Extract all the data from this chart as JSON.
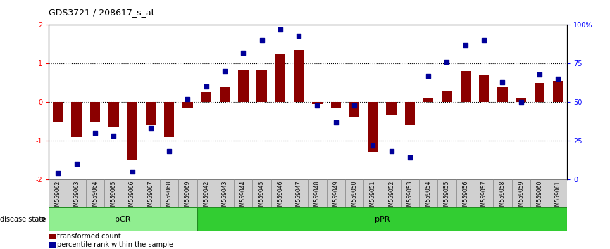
{
  "title": "GDS3721 / 208617_s_at",
  "samples": [
    "GSM559062",
    "GSM559063",
    "GSM559064",
    "GSM559065",
    "GSM559066",
    "GSM559067",
    "GSM559068",
    "GSM559069",
    "GSM559042",
    "GSM559043",
    "GSM559044",
    "GSM559045",
    "GSM559046",
    "GSM559047",
    "GSM559048",
    "GSM559049",
    "GSM559050",
    "GSM559051",
    "GSM559052",
    "GSM559053",
    "GSM559054",
    "GSM559055",
    "GSM559056",
    "GSM559057",
    "GSM559058",
    "GSM559059",
    "GSM559060",
    "GSM559061"
  ],
  "bar_values": [
    -0.5,
    -0.9,
    -0.5,
    -0.65,
    -1.5,
    -0.6,
    -0.9,
    -0.15,
    0.25,
    0.4,
    0.85,
    0.85,
    1.25,
    1.35,
    -0.05,
    -0.15,
    -0.4,
    -1.3,
    -0.35,
    -0.6,
    0.1,
    0.3,
    0.8,
    0.7,
    0.4,
    0.1,
    0.5,
    0.55
  ],
  "scatter_values": [
    4,
    10,
    30,
    28,
    5,
    33,
    18,
    52,
    60,
    70,
    82,
    90,
    97,
    93,
    48,
    37,
    48,
    22,
    18,
    14,
    67,
    76,
    87,
    90,
    63,
    50,
    68,
    65
  ],
  "pCR_count": 8,
  "pPR_count": 20,
  "bar_color": "#8B0000",
  "scatter_color": "#000099",
  "ylim": [
    -2,
    2
  ],
  "y2lim": [
    0,
    100
  ],
  "dotted_lines": [
    -1,
    0,
    1
  ],
  "pCR_color": "#90EE90",
  "pPR_color": "#32CD32",
  "pCR_label": "pCR",
  "pPR_label": "pPR",
  "disease_state_label": "disease state",
  "legend_bar": "transformed count",
  "legend_scatter": "percentile rank within the sample",
  "ytick_labels_left": [
    "-2",
    "-1",
    "0",
    "1",
    "2"
  ],
  "ytick_vals_left": [
    -2,
    -1,
    0,
    1,
    2
  ],
  "ytick_labels_right": [
    "0",
    "25",
    "50",
    "75",
    "100%"
  ],
  "ytick_vals_right": [
    0,
    25,
    50,
    75,
    100
  ]
}
